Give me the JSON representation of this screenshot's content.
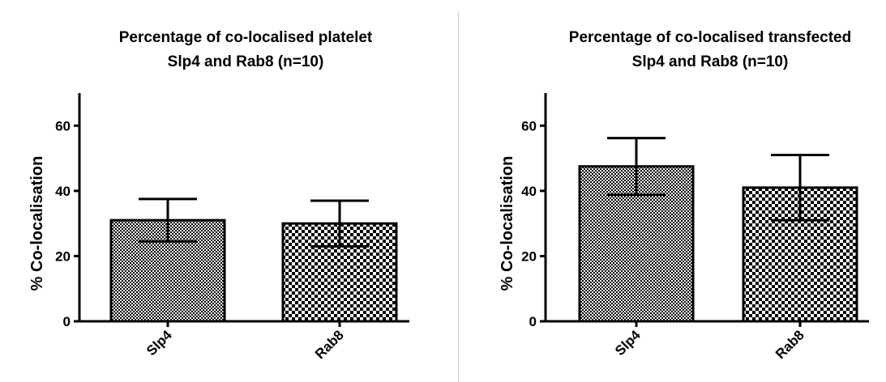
{
  "chart_data": [
    {
      "type": "bar",
      "title": [
        "Percentage of co-localised platelet",
        "Slp4 and Rab8 (n=10)"
      ],
      "ylabel": "% Co-localisation",
      "xlabel": "",
      "categories": [
        "Slp4",
        "Rab8"
      ],
      "values": [
        31,
        30
      ],
      "errors": [
        6.5,
        7
      ],
      "ylim": [
        0,
        70
      ],
      "yticks": [
        0,
        20,
        40,
        60
      ],
      "patterns": [
        "fine-checker",
        "coarse-checker"
      ],
      "grid": false
    },
    {
      "type": "bar",
      "title": [
        "Percentage of co-localised transfected",
        "Slp4 and Rab8 (n=10)"
      ],
      "ylabel": "% Co-localisation",
      "xlabel": "",
      "categories": [
        "Slp4",
        "Rab8"
      ],
      "values": [
        47.5,
        41
      ],
      "errors": [
        8.7,
        10
      ],
      "ylim": [
        0,
        70
      ],
      "yticks": [
        0,
        20,
        40,
        60
      ],
      "patterns": [
        "fine-checker",
        "coarse-checker"
      ],
      "grid": false
    }
  ],
  "colors": {
    "bar_dark": "#000000",
    "bar_light": "#ffffff",
    "axis": "#000000",
    "divider": "#cfcfcf"
  }
}
